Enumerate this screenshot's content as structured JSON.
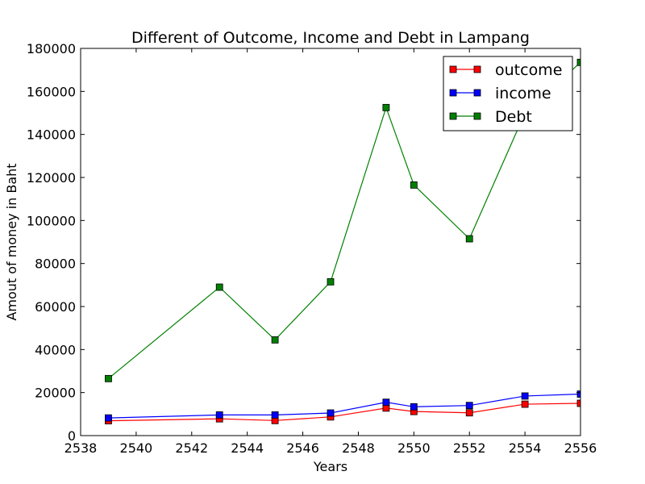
{
  "chart_data": {
    "type": "line",
    "title": "Different of Outcome, Income and Debt in Lampang",
    "xlabel": "Years",
    "ylabel": "Amout of money in Baht",
    "xlim": [
      2538,
      2556
    ],
    "ylim": [
      0,
      180000
    ],
    "xticks": [
      2538,
      2540,
      2542,
      2544,
      2546,
      2548,
      2550,
      2552,
      2554,
      2556
    ],
    "yticks": [
      0,
      20000,
      40000,
      60000,
      80000,
      100000,
      120000,
      140000,
      160000,
      180000
    ],
    "grid": false,
    "legend_position": "top-right",
    "x": [
      2539,
      2543,
      2545,
      2547,
      2549,
      2550,
      2552,
      2554,
      2556
    ],
    "series": [
      {
        "name": "outcome",
        "color": "#ff0000",
        "marker": "square",
        "values": [
          6900,
          7800,
          7000,
          8700,
          12800,
          11200,
          10600,
          14600,
          15000
        ]
      },
      {
        "name": "income",
        "color": "#0000ff",
        "marker": "square",
        "values": [
          8200,
          9600,
          9600,
          10500,
          15500,
          13400,
          14000,
          18400,
          19300
        ]
      },
      {
        "name": "Debt",
        "color": "#008000",
        "marker": "square",
        "values": [
          26500,
          69000,
          44500,
          71500,
          152500,
          116500,
          91500,
          150000,
          173500
        ]
      }
    ]
  }
}
